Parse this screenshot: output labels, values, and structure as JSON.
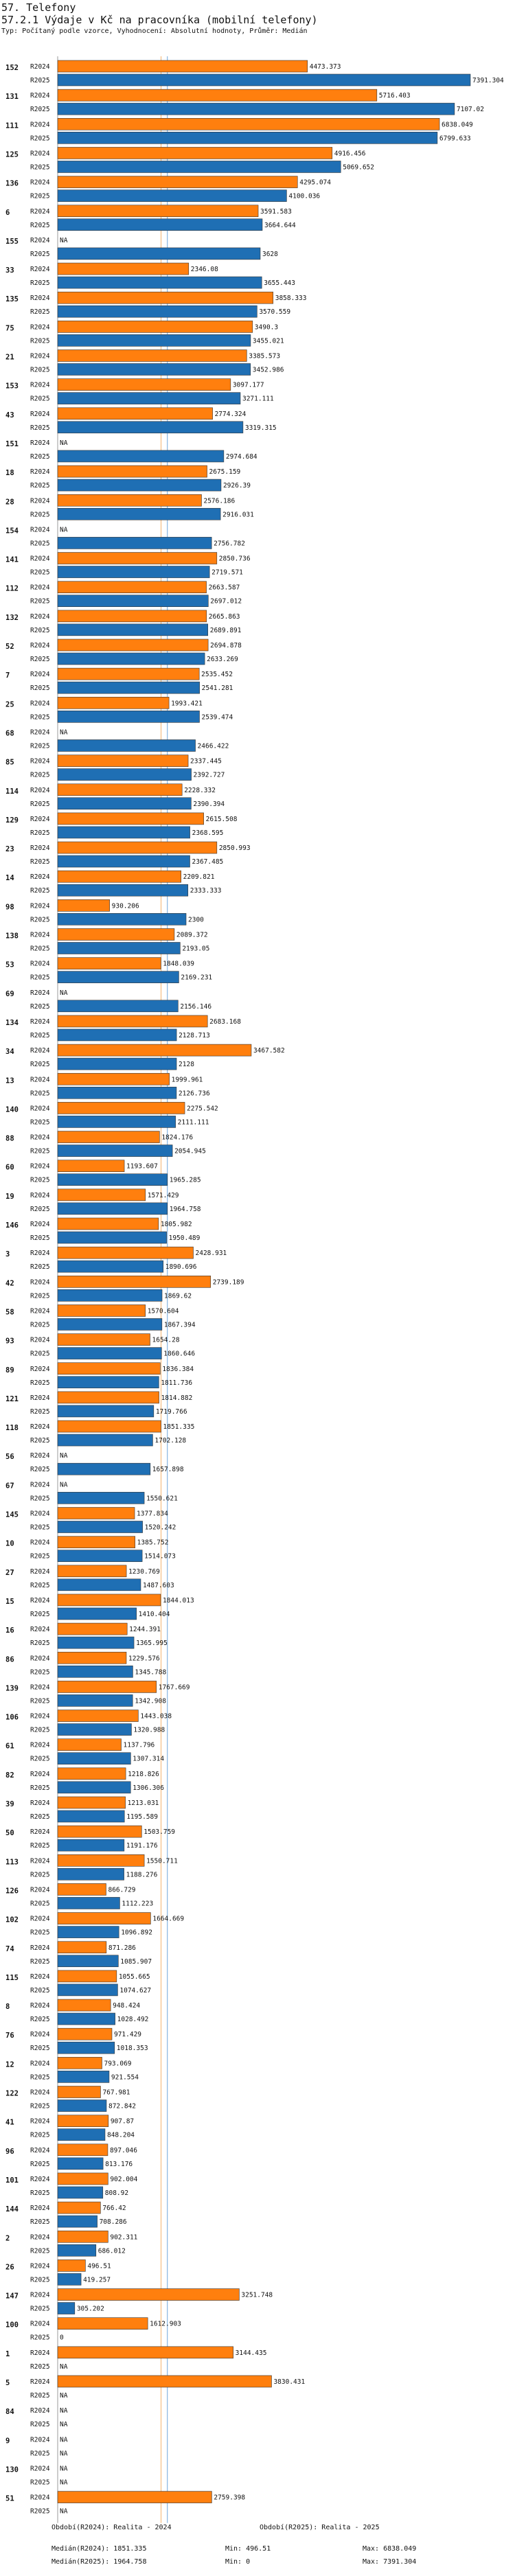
{
  "header": {
    "title": "57. Telefony",
    "subtitle": "57.2.1 Výdaje v Kč na pracovníka (mobilní telefony)",
    "note": "Typ: Počítaný podle vzorce, Vyhodnocení: Absolutní hodnoty, Průměr: Medián"
  },
  "chart_data": {
    "type": "bar",
    "orientation": "horizontal",
    "series_names": [
      "R2024",
      "R2025"
    ],
    "colors": {
      "R2024": "#ff7f0e",
      "R2025": "#1f6fb4"
    },
    "xlim": [
      0,
      7391.304
    ],
    "median_lines": [
      1851.335,
      1964.758
    ],
    "na_label": "NA",
    "rows": [
      {
        "id": "152",
        "r2024": 4473.373,
        "r2025": 7391.304
      },
      {
        "id": "131",
        "r2024": 5716.403,
        "r2025": 7107.02
      },
      {
        "id": "111",
        "r2024": 6838.049,
        "r2025": 6799.633
      },
      {
        "id": "125",
        "r2024": 4916.456,
        "r2025": 5069.652
      },
      {
        "id": "136",
        "r2024": 4295.074,
        "r2025": 4100.036
      },
      {
        "id": "6",
        "r2024": 3591.583,
        "r2025": 3664.644
      },
      {
        "id": "155",
        "r2024": null,
        "r2025": 3628
      },
      {
        "id": "33",
        "r2024": 2346.08,
        "r2025": 3655.443
      },
      {
        "id": "135",
        "r2024": 3858.333,
        "r2025": 3570.559
      },
      {
        "id": "75",
        "r2024": 3490.3,
        "r2025": 3455.021
      },
      {
        "id": "21",
        "r2024": 3385.573,
        "r2025": 3452.986
      },
      {
        "id": "153",
        "r2024": 3097.177,
        "r2025": 3271.111
      },
      {
        "id": "43",
        "r2024": 2774.324,
        "r2025": 3319.315
      },
      {
        "id": "151",
        "r2024": null,
        "r2025": 2974.684
      },
      {
        "id": "18",
        "r2024": 2675.159,
        "r2025": 2926.39
      },
      {
        "id": "28",
        "r2024": 2576.186,
        "r2025": 2916.031
      },
      {
        "id": "154",
        "r2024": null,
        "r2025": 2756.782
      },
      {
        "id": "141",
        "r2024": 2850.736,
        "r2025": 2719.571
      },
      {
        "id": "112",
        "r2024": 2663.587,
        "r2025": 2697.012
      },
      {
        "id": "132",
        "r2024": 2665.863,
        "r2025": 2689.891
      },
      {
        "id": "52",
        "r2024": 2694.878,
        "r2025": 2633.269
      },
      {
        "id": "7",
        "r2024": 2535.452,
        "r2025": 2541.281
      },
      {
        "id": "25",
        "r2024": 1993.421,
        "r2025": 2539.474
      },
      {
        "id": "68",
        "r2024": null,
        "r2025": 2466.422
      },
      {
        "id": "85",
        "r2024": 2337.445,
        "r2025": 2392.727
      },
      {
        "id": "114",
        "r2024": 2228.332,
        "r2025": 2390.394
      },
      {
        "id": "129",
        "r2024": 2615.508,
        "r2025": 2368.595
      },
      {
        "id": "23",
        "r2024": 2850.993,
        "r2025": 2367.485
      },
      {
        "id": "14",
        "r2024": 2209.821,
        "r2025": 2333.333
      },
      {
        "id": "98",
        "r2024": 930.206,
        "r2025": 2300
      },
      {
        "id": "138",
        "r2024": 2089.372,
        "r2025": 2193.05
      },
      {
        "id": "53",
        "r2024": 1848.039,
        "r2025": 2169.231
      },
      {
        "id": "69",
        "r2024": null,
        "r2025": 2156.146
      },
      {
        "id": "134",
        "r2024": 2683.168,
        "r2025": 2128.713
      },
      {
        "id": "34",
        "r2024": 3467.582,
        "r2025": 2128
      },
      {
        "id": "13",
        "r2024": 1999.961,
        "r2025": 2126.736
      },
      {
        "id": "140",
        "r2024": 2275.542,
        "r2025": 2111.111
      },
      {
        "id": "88",
        "r2024": 1824.176,
        "r2025": 2054.945
      },
      {
        "id": "60",
        "r2024": 1193.607,
        "r2025": 1965.285
      },
      {
        "id": "19",
        "r2024": 1571.429,
        "r2025": 1964.758
      },
      {
        "id": "146",
        "r2024": 1805.982,
        "r2025": 1950.489
      },
      {
        "id": "3",
        "r2024": 2428.931,
        "r2025": 1890.696
      },
      {
        "id": "42",
        "r2024": 2739.189,
        "r2025": 1869.62
      },
      {
        "id": "58",
        "r2024": 1570.604,
        "r2025": 1867.394
      },
      {
        "id": "93",
        "r2024": 1654.28,
        "r2025": 1860.646
      },
      {
        "id": "89",
        "r2024": 1836.384,
        "r2025": 1811.736
      },
      {
        "id": "121",
        "r2024": 1814.882,
        "r2025": 1719.766
      },
      {
        "id": "118",
        "r2024": 1851.335,
        "r2025": 1702.128
      },
      {
        "id": "56",
        "r2024": null,
        "r2025": 1657.898
      },
      {
        "id": "67",
        "r2024": null,
        "r2025": 1550.621
      },
      {
        "id": "145",
        "r2024": 1377.834,
        "r2025": 1520.242
      },
      {
        "id": "10",
        "r2024": 1385.752,
        "r2025": 1514.073
      },
      {
        "id": "27",
        "r2024": 1230.769,
        "r2025": 1487.603
      },
      {
        "id": "15",
        "r2024": 1844.013,
        "r2025": 1410.404
      },
      {
        "id": "16",
        "r2024": 1244.391,
        "r2025": 1365.995
      },
      {
        "id": "86",
        "r2024": 1229.576,
        "r2025": 1345.788
      },
      {
        "id": "139",
        "r2024": 1767.669,
        "r2025": 1342.908
      },
      {
        "id": "106",
        "r2024": 1443.038,
        "r2025": 1320.988
      },
      {
        "id": "61",
        "r2024": 1137.796,
        "r2025": 1307.314
      },
      {
        "id": "82",
        "r2024": 1218.826,
        "r2025": 1306.306
      },
      {
        "id": "39",
        "r2024": 1213.031,
        "r2025": 1195.589
      },
      {
        "id": "50",
        "r2024": 1503.759,
        "r2025": 1191.176
      },
      {
        "id": "113",
        "r2024": 1550.711,
        "r2025": 1188.276
      },
      {
        "id": "126",
        "r2024": 866.729,
        "r2025": 1112.223
      },
      {
        "id": "102",
        "r2024": 1664.669,
        "r2025": 1096.892
      },
      {
        "id": "74",
        "r2024": 871.286,
        "r2025": 1085.907
      },
      {
        "id": "115",
        "r2024": 1055.665,
        "r2025": 1074.627
      },
      {
        "id": "8",
        "r2024": 948.424,
        "r2025": 1028.492
      },
      {
        "id": "76",
        "r2024": 971.429,
        "r2025": 1018.353
      },
      {
        "id": "12",
        "r2024": 793.069,
        "r2025": 921.554
      },
      {
        "id": "122",
        "r2024": 767.981,
        "r2025": 872.842
      },
      {
        "id": "41",
        "r2024": 907.87,
        "r2025": 848.204
      },
      {
        "id": "96",
        "r2024": 897.046,
        "r2025": 813.176
      },
      {
        "id": "101",
        "r2024": 902.004,
        "r2025": 808.92
      },
      {
        "id": "144",
        "r2024": 766.42,
        "r2025": 708.286
      },
      {
        "id": "2",
        "r2024": 902.311,
        "r2025": 686.012
      },
      {
        "id": "26",
        "r2024": 496.51,
        "r2025": 419.257
      },
      {
        "id": "147",
        "r2024": 3251.748,
        "r2025": 305.202
      },
      {
        "id": "100",
        "r2024": 1612.903,
        "r2025": 0
      },
      {
        "id": "1",
        "r2024": 3144.435,
        "r2025": null
      },
      {
        "id": "5",
        "r2024": 3830.431,
        "r2025": null
      },
      {
        "id": "84",
        "r2024": null,
        "r2025": null
      },
      {
        "id": "9",
        "r2024": null,
        "r2025": null
      },
      {
        "id": "130",
        "r2024": null,
        "r2025": null
      },
      {
        "id": "51",
        "r2024": 2759.398,
        "r2025": null
      }
    ]
  },
  "footer": {
    "legend1": "Období(R2024): Realita - 2024",
    "legend2": "Období(R2025): Realita - 2025",
    "med1": "Medián(R2024): 1851.335",
    "med2": "Medián(R2025): 1964.758",
    "min1": "Min: 496.51",
    "min2": "Min: 0",
    "max1": "Max: 6838.049",
    "max2": "Max: 7391.304"
  }
}
